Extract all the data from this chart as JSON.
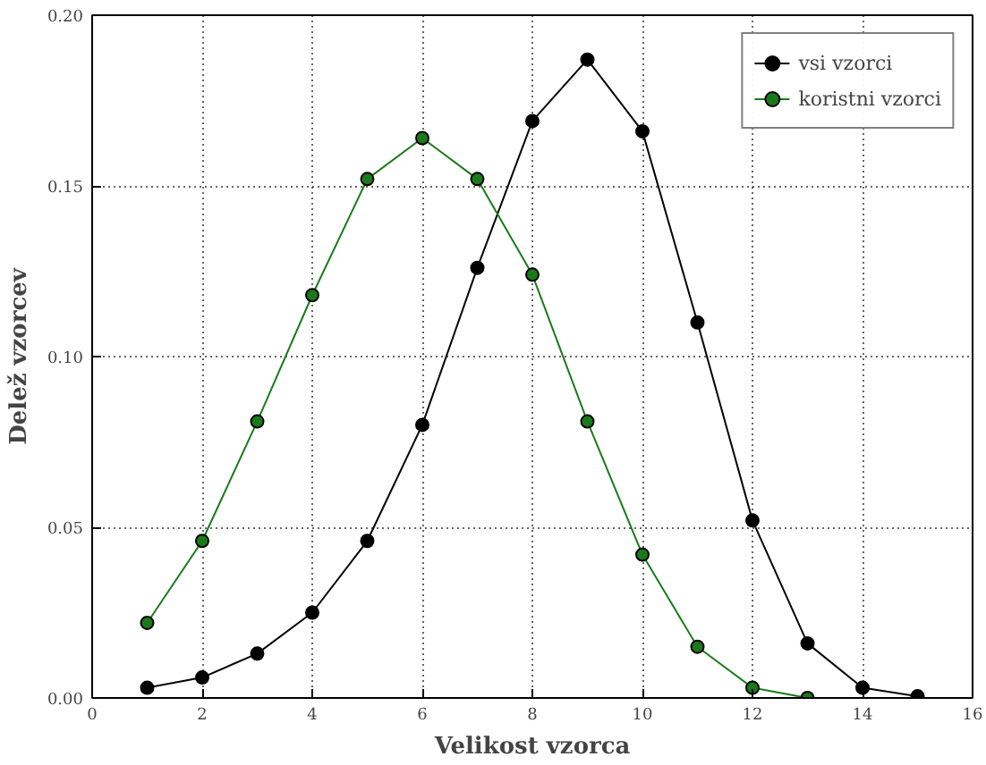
{
  "chart_data": {
    "type": "line",
    "xlabel": "Velikost vzorca",
    "ylabel": "Delež vzorcev",
    "x": [
      1,
      2,
      3,
      4,
      5,
      6,
      7,
      8,
      9,
      10,
      11,
      12,
      13,
      14,
      15
    ],
    "series": [
      {
        "name": "vsi vzorci",
        "color": "#000000",
        "values": [
          0.003,
          0.006,
          0.013,
          0.025,
          0.046,
          0.08,
          0.126,
          0.169,
          0.187,
          0.166,
          0.11,
          0.052,
          0.016,
          0.003,
          0.0005
        ]
      },
      {
        "name": "koristni vzorci",
        "color": "#1a7a1a",
        "values": [
          0.022,
          0.046,
          0.081,
          0.118,
          0.152,
          0.164,
          0.152,
          0.124,
          0.081,
          0.042,
          0.015,
          0.003,
          0.0,
          null,
          null
        ]
      }
    ],
    "xlim": [
      0,
      16
    ],
    "xticks": [
      0,
      2,
      4,
      6,
      8,
      10,
      12,
      14,
      16
    ],
    "ylim": [
      0,
      0.2
    ],
    "yticks": [
      {
        "value": 0,
        "label": "0.00"
      },
      {
        "value": 0.05,
        "label": "0.05"
      },
      {
        "value": 0.1,
        "label": "0.10"
      },
      {
        "value": 0.15,
        "label": "0.15"
      },
      {
        "value": 0.2,
        "label": "0.20"
      }
    ],
    "grid": true,
    "legend": "top right",
    "marker": "circle",
    "line_style": "solid"
  }
}
